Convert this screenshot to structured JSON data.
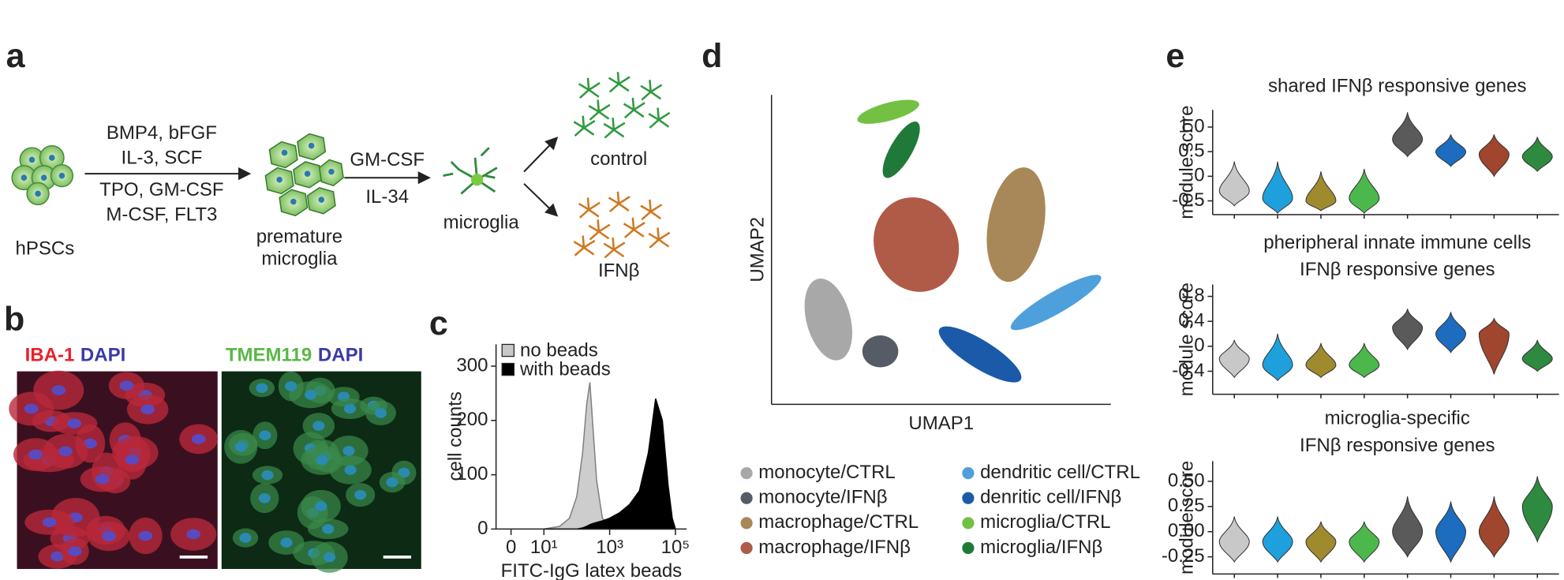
{
  "panel_labels": [
    "a",
    "b",
    "c",
    "d",
    "e"
  ],
  "diagram": {
    "start": "hPSCs",
    "step1_top": [
      "BMP4, bFGF",
      "IL-3, SCF"
    ],
    "step1_bottom": [
      "TPO, GM-CSF",
      "M-CSF, FLT3"
    ],
    "premature": [
      "premature",
      "microglia"
    ],
    "step2_top": "GM-CSF",
    "step2_bottom": "IL-34",
    "microglia": "microglia",
    "control": "control",
    "treated": "IFNβ"
  },
  "images": [
    {
      "stains": [
        {
          "text": "IBA-1",
          "color": "#e8202a"
        },
        {
          "text": "DAPI",
          "color": "#3a3aa8"
        }
      ]
    },
    {
      "stains": [
        {
          "text": "TMEM119",
          "color": "#5ab846"
        },
        {
          "text": "DAPI",
          "color": "#3a3aa8"
        }
      ]
    }
  ],
  "umap": {
    "xlabel": "UMAP1",
    "ylabel": "UMAP2",
    "legend": [
      {
        "name": "monocyte/CTRL",
        "color": "#a8a8a8"
      },
      {
        "name": "monocyte/IFNβ",
        "color": "#555c66"
      },
      {
        "name": "macrophage/CTRL",
        "color": "#a88858"
      },
      {
        "name": "macrophage/IFNβ",
        "color": "#b05a48"
      },
      {
        "name": "dendritic cell/CTRL",
        "color": "#4ea0dc"
      },
      {
        "name": "denritic cell/IFNβ",
        "color": "#1a5aa8"
      },
      {
        "name": "microglia/CTRL",
        "color": "#74c043"
      },
      {
        "name": "microglia/IFNβ",
        "color": "#1f7a3a"
      }
    ]
  },
  "chart_data": [
    {
      "type": "area",
      "xlabel": "FITC-IgG latex beads",
      "ylabel": "cell counts",
      "xscale": "log",
      "x": [
        10,
        30,
        60,
        100,
        150,
        200,
        250,
        300,
        400,
        600,
        1000,
        2000,
        4000,
        8000,
        15000,
        25000,
        40000,
        60000,
        80000,
        100000
      ],
      "series": [
        {
          "name": "no beads",
          "color": "#c8c8c8",
          "stroke": "#808080",
          "values": [
            0,
            5,
            20,
            60,
            140,
            230,
            270,
            200,
            90,
            20,
            5,
            0,
            0,
            0,
            0,
            0,
            0,
            0,
            0,
            0
          ]
        },
        {
          "name": "with beads",
          "color": "#000000",
          "stroke": "#000000",
          "values": [
            0,
            0,
            0,
            0,
            2,
            5,
            8,
            10,
            12,
            15,
            20,
            30,
            45,
            70,
            140,
            240,
            200,
            80,
            20,
            0
          ]
        }
      ],
      "xlim": [
        0.35,
        220000
      ],
      "xticks": [
        {
          "value": 1,
          "label": "0"
        },
        {
          "value": 10,
          "label": "10¹"
        },
        {
          "value": 1000,
          "label": "10³"
        },
        {
          "value": 100000,
          "label": "10⁵"
        }
      ],
      "ylim": [
        0,
        340
      ],
      "yticks": [
        0,
        100,
        200,
        300
      ]
    },
    {
      "type": "violin",
      "title": [
        "shared IFNβ responsive genes"
      ],
      "ylabel": "module score",
      "categories": [
        null,
        null,
        null,
        null,
        null,
        null,
        null,
        null
      ],
      "colors": [
        "#c8c8c8",
        "#1ea0dc",
        "#a08a2e",
        "#4cb84c",
        "#5a5a5a",
        "#1c6cc0",
        "#a0452e",
        "#2e8a3e"
      ],
      "values": [
        -0.3,
        -0.45,
        -0.5,
        -0.45,
        0.75,
        0.5,
        0.45,
        0.4
      ],
      "min": [
        -0.6,
        -0.75,
        -0.7,
        -0.75,
        0.4,
        0.2,
        0,
        0.1
      ],
      "max": [
        0.3,
        0.3,
        0.1,
        0.15,
        1.3,
        0.85,
        0.85,
        0.8
      ],
      "ylim": [
        -0.78,
        1.35
      ],
      "yticks": [
        -0.5,
        0,
        0.5,
        {
          "value": 1,
          "label": "1.0"
        }
      ]
    },
    {
      "type": "violin",
      "title": [
        "pheripheral innate immune cells",
        "IFNβ responsive genes"
      ],
      "ylabel": "module score",
      "categories": [
        null,
        null,
        null,
        null,
        null,
        null,
        null,
        null
      ],
      "colors": [
        "#c8c8c8",
        "#1ea0dc",
        "#a08a2e",
        "#4cb84c",
        "#5a5a5a",
        "#1c6cc0",
        "#a0452e",
        "#2e8a3e"
      ],
      "values": [
        -0.2,
        -0.3,
        -0.3,
        -0.3,
        0.3,
        0.2,
        0.2,
        -0.2
      ],
      "min": [
        -0.5,
        -0.55,
        -0.5,
        -0.5,
        -0.05,
        -0.1,
        -0.45,
        -0.4
      ],
      "max": [
        0.1,
        0.2,
        0.05,
        0.05,
        0.6,
        0.55,
        0.45,
        0.1
      ],
      "ylim": [
        -0.77,
        0.99
      ],
      "yticks": [
        -0.4,
        0,
        0.4,
        0.8
      ]
    },
    {
      "type": "violin",
      "title": [
        "microglia-specific",
        "IFNβ responsive genes"
      ],
      "ylabel": "module score",
      "categories": [
        null,
        null,
        null,
        null,
        null,
        null,
        null,
        null
      ],
      "colors": [
        "#c8c8c8",
        "#1ea0dc",
        "#a08a2e",
        "#4cb84c",
        "#5a5a5a",
        "#1c6cc0",
        "#a0452e",
        "#2e8a3e"
      ],
      "values": [
        -0.1,
        -0.1,
        -0.1,
        -0.1,
        0,
        0,
        0,
        0.25
      ],
      "min": [
        -0.3,
        -0.3,
        -0.3,
        -0.3,
        -0.25,
        -0.3,
        -0.25,
        -0.1
      ],
      "max": [
        0.15,
        0.15,
        0.1,
        0.1,
        0.35,
        0.3,
        0.35,
        0.55
      ],
      "ylim": [
        -0.42,
        0.7
      ],
      "yticks": [
        -0.25,
        {
          "value": 0,
          "label": "0.00"
        },
        {
          "value": 0.25,
          "label": "0.25"
        },
        {
          "value": 0.5,
          "label": "0.50"
        }
      ]
    }
  ]
}
